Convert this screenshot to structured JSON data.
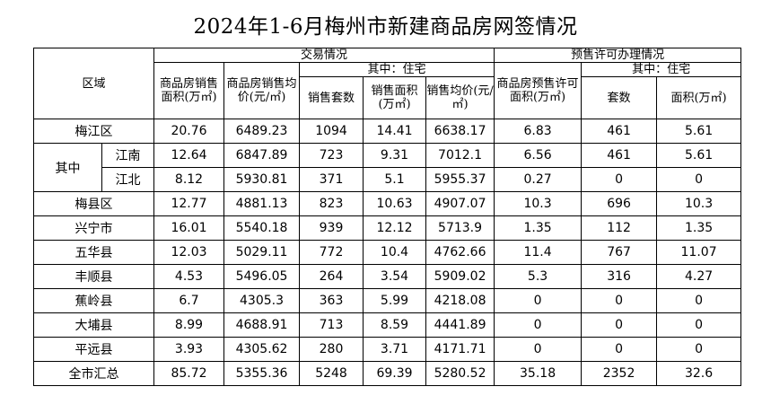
{
  "title": "2024年1-6月梅州市新建商品房网签情况",
  "headers": {
    "region": "区域",
    "transaction": "交易情况",
    "presale": "预售许可办理情况",
    "residential_sub": "其中：住宅",
    "presale_residential_sub": "其中：住宅",
    "sales_area": "商品房销售面积(万㎡)",
    "avg_price": "商品房销售均价(元/㎡)",
    "res_units": "销售套数",
    "res_area": "销售面积(万㎡)",
    "res_price": "销售均价(元/㎡)",
    "presale_area": "商品房预售许可面积(万㎡)",
    "presale_units": "套数",
    "presale_res_area": "面积(万㎡)"
  },
  "rows": [
    {
      "region": "梅江区",
      "sales_area": "20.76",
      "avg_price": "6489.23",
      "res_units": "1094",
      "res_area": "14.41",
      "res_price": "6638.17",
      "presale_area": "6.83",
      "presale_units": "461",
      "presale_res_area": "5.61"
    },
    {
      "group": "其中",
      "region": "江南",
      "sales_area": "12.64",
      "avg_price": "6847.89",
      "res_units": "723",
      "res_area": "9.31",
      "res_price": "7012.1",
      "presale_area": "6.56",
      "presale_units": "461",
      "presale_res_area": "5.61"
    },
    {
      "region": "江北",
      "sales_area": "8.12",
      "avg_price": "5930.81",
      "res_units": "371",
      "res_area": "5.1",
      "res_price": "5955.37",
      "presale_area": "0.27",
      "presale_units": "0",
      "presale_res_area": "0"
    },
    {
      "region": "梅县区",
      "sales_area": "12.77",
      "avg_price": "4881.13",
      "res_units": "823",
      "res_area": "10.63",
      "res_price": "4907.07",
      "presale_area": "10.3",
      "presale_units": "696",
      "presale_res_area": "10.3"
    },
    {
      "region": "兴宁市",
      "sales_area": "16.01",
      "avg_price": "5540.18",
      "res_units": "939",
      "res_area": "12.12",
      "res_price": "5713.9",
      "presale_area": "1.35",
      "presale_units": "112",
      "presale_res_area": "1.35"
    },
    {
      "region": "五华县",
      "sales_area": "12.03",
      "avg_price": "5029.11",
      "res_units": "772",
      "res_area": "10.4",
      "res_price": "4762.66",
      "presale_area": "11.4",
      "presale_units": "767",
      "presale_res_area": "11.07"
    },
    {
      "region": "丰顺县",
      "sales_area": "4.53",
      "avg_price": "5496.05",
      "res_units": "264",
      "res_area": "3.54",
      "res_price": "5909.02",
      "presale_area": "5.3",
      "presale_units": "316",
      "presale_res_area": "4.27"
    },
    {
      "region": "蕉岭县",
      "sales_area": "6.7",
      "avg_price": "4305.3",
      "res_units": "363",
      "res_area": "5.99",
      "res_price": "4218.08",
      "presale_area": "0",
      "presale_units": "0",
      "presale_res_area": "0"
    },
    {
      "region": "大埔县",
      "sales_area": "8.99",
      "avg_price": "4688.91",
      "res_units": "713",
      "res_area": "8.59",
      "res_price": "4441.89",
      "presale_area": "0",
      "presale_units": "0",
      "presale_res_area": "0"
    },
    {
      "region": "平远县",
      "sales_area": "3.93",
      "avg_price": "4305.62",
      "res_units": "280",
      "res_area": "3.71",
      "res_price": "4171.71",
      "presale_area": "0",
      "presale_units": "0",
      "presale_res_area": "0"
    },
    {
      "region": "全市汇总",
      "sales_area": "85.72",
      "avg_price": "5355.36",
      "res_units": "5248",
      "res_area": "69.39",
      "res_price": "5280.52",
      "presale_area": "35.18",
      "presale_units": "2352",
      "presale_res_area": "32.6"
    }
  ]
}
